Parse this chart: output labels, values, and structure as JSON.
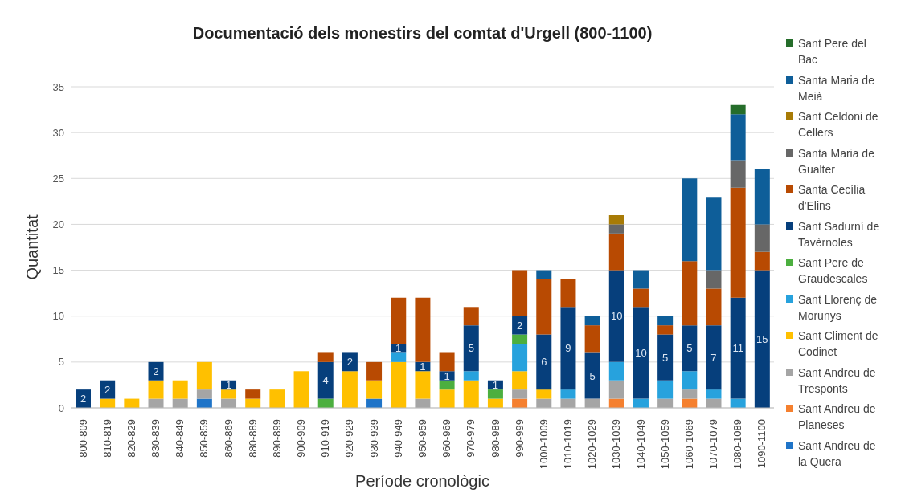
{
  "chart_data": {
    "type": "bar",
    "stacked": true,
    "title": "Documentació dels monestirs del comtat d'Urgell (800-1100)",
    "xlabel": "Període cronològic",
    "ylabel": "Quantitat",
    "categories": [
      "800-809",
      "810-819",
      "820-829",
      "830-839",
      "840-849",
      "850-859",
      "860-869",
      "880-889",
      "890-899",
      "900-909",
      "910-919",
      "920-929",
      "930-939",
      "940-949",
      "950-959",
      "960-969",
      "970-979",
      "980-989",
      "990-999",
      "1000-1009",
      "1010-1019",
      "1020-1029",
      "1030-1039",
      "1040-1049",
      "1050-1059",
      "1060-1069",
      "1070-1079",
      "1080-1089",
      "1090-1100"
    ],
    "ylim": [
      0,
      35
    ],
    "yticks": [
      0,
      5,
      10,
      15,
      20,
      25,
      30,
      35
    ],
    "grid": "y",
    "legend": "right",
    "series": [
      {
        "name": "Sant Andreu de la Quera",
        "color": "#1f74c8",
        "values": [
          null,
          null,
          null,
          null,
          null,
          1,
          null,
          null,
          null,
          null,
          null,
          null,
          1,
          null,
          null,
          null,
          null,
          null,
          null,
          null,
          null,
          null,
          null,
          null,
          null,
          null,
          null,
          null,
          null
        ]
      },
      {
        "name": "Sant Andreu de Planeses",
        "color": "#f5802f",
        "values": [
          null,
          null,
          null,
          null,
          null,
          null,
          null,
          null,
          null,
          null,
          null,
          null,
          null,
          null,
          null,
          null,
          null,
          null,
          1,
          null,
          null,
          null,
          1,
          null,
          null,
          1,
          null,
          null,
          null
        ]
      },
      {
        "name": "Sant Andreu de Tresponts",
        "color": "#a5a5a5",
        "values": [
          null,
          null,
          null,
          1,
          1,
          1,
          1,
          null,
          null,
          null,
          null,
          null,
          null,
          null,
          1,
          null,
          null,
          null,
          1,
          1,
          1,
          1,
          2,
          null,
          1,
          1,
          1,
          null,
          null
        ]
      },
      {
        "name": "Sant Climent de Codinet",
        "color": "#ffc000",
        "values": [
          null,
          1,
          1,
          2,
          2,
          3,
          1,
          1,
          2,
          4,
          null,
          4,
          2,
          5,
          3,
          2,
          3,
          1,
          2,
          1,
          null,
          null,
          null,
          null,
          null,
          null,
          null,
          null,
          null
        ]
      },
      {
        "name": "Sant Llorenç de Morunys",
        "color": "#27a2dd",
        "values": [
          null,
          null,
          null,
          null,
          null,
          null,
          null,
          null,
          null,
          null,
          null,
          null,
          null,
          1,
          null,
          null,
          1,
          null,
          3,
          null,
          1,
          null,
          2,
          1,
          2,
          2,
          1,
          1,
          null
        ]
      },
      {
        "name": "Sant Pere de Graudescales",
        "color": "#4caf3f",
        "values": [
          null,
          null,
          null,
          null,
          null,
          null,
          null,
          null,
          null,
          null,
          1,
          null,
          null,
          null,
          null,
          1,
          null,
          1,
          1,
          null,
          null,
          null,
          null,
          null,
          null,
          null,
          null,
          null,
          null
        ]
      },
      {
        "name": "Sant Sadurní de Tavèrnoles",
        "color": "#063f7c",
        "values": [
          2,
          2,
          null,
          2,
          null,
          null,
          1,
          null,
          null,
          null,
          4,
          2,
          null,
          1,
          1,
          1,
          5,
          1,
          2,
          6,
          9,
          5,
          10,
          10,
          5,
          5,
          7,
          11,
          15
        ],
        "value_labels": [
          "2",
          "2",
          null,
          "2",
          null,
          null,
          "1",
          null,
          null,
          null,
          "4",
          "2",
          null,
          "1",
          "1",
          "1",
          "5",
          "1",
          "2",
          "6",
          "9",
          "5",
          "10",
          "10",
          "5",
          "5",
          "7",
          "11",
          "15"
        ]
      },
      {
        "name": "Santa Cecília d'Elins",
        "color": "#b84a02",
        "values": [
          null,
          null,
          null,
          null,
          null,
          null,
          null,
          1,
          null,
          null,
          1,
          null,
          2,
          5,
          7,
          2,
          2,
          null,
          5,
          6,
          3,
          3,
          4,
          2,
          1,
          7,
          4,
          12,
          2
        ]
      },
      {
        "name": "Santa Maria de Gualter",
        "color": "#676767",
        "values": [
          null,
          null,
          null,
          null,
          null,
          null,
          null,
          null,
          null,
          null,
          null,
          null,
          null,
          null,
          null,
          null,
          null,
          null,
          null,
          null,
          null,
          null,
          1,
          null,
          null,
          null,
          2,
          3,
          3
        ]
      },
      {
        "name": "Sant Celdoni de Cellers",
        "color": "#a87b06",
        "values": [
          null,
          null,
          null,
          null,
          null,
          null,
          null,
          null,
          null,
          null,
          null,
          null,
          null,
          null,
          null,
          null,
          null,
          null,
          null,
          null,
          null,
          null,
          1,
          null,
          null,
          null,
          null,
          null,
          null
        ]
      },
      {
        "name": "Santa Maria de Meià",
        "color": "#0e5e99",
        "values": [
          null,
          null,
          null,
          null,
          null,
          null,
          null,
          null,
          null,
          null,
          null,
          null,
          null,
          null,
          null,
          null,
          null,
          null,
          null,
          1,
          null,
          1,
          null,
          2,
          1,
          9,
          8,
          5,
          6
        ]
      },
      {
        "name": "Sant Pere del Bac",
        "color": "#256d2a",
        "values": [
          null,
          null,
          null,
          null,
          null,
          null,
          null,
          null,
          null,
          null,
          null,
          null,
          null,
          null,
          null,
          null,
          null,
          null,
          null,
          null,
          null,
          null,
          null,
          null,
          null,
          null,
          null,
          1,
          null
        ]
      }
    ]
  }
}
